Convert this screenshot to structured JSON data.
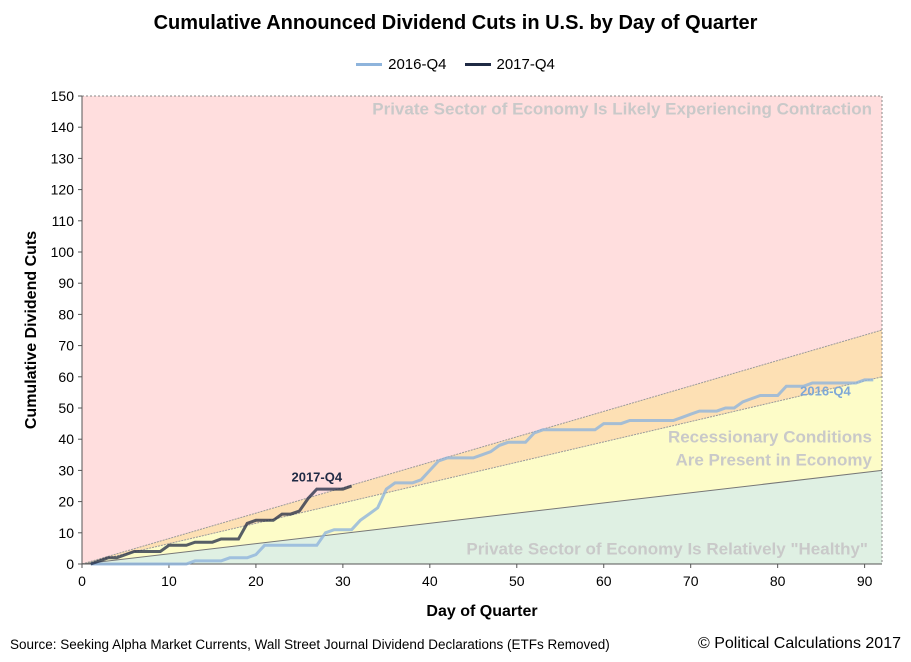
{
  "title": "Cumulative Announced Dividend Cuts in U.S. by Day of Quarter",
  "source": "Source: Seeking Alpha Market Currents, Wall Street Journal Dividend Declarations (ETFs Removed)",
  "copyright": "© Political Calculations 2017",
  "colors": {
    "series_2016": "#8eb4dc",
    "series_2017": "#1f2a44",
    "zone_contraction": "#ffdede",
    "zone_orange": "#fde0b4",
    "zone_recession": "#fdfcc8",
    "zone_healthy": "#dff0e3",
    "zone_text": "#c9c9c9",
    "label_2016": "#7fa8d6"
  },
  "chart_data": {
    "type": "line",
    "title": "Cumulative Announced Dividend Cuts in U.S. by Day of Quarter",
    "xlabel": "Day of Quarter",
    "ylabel": "Cumulative Dividend Cuts",
    "xlim": [
      0,
      92
    ],
    "ylim": [
      0,
      150
    ],
    "xticks": [
      0,
      10,
      20,
      30,
      40,
      50,
      60,
      70,
      80,
      90
    ],
    "yticks": [
      0,
      10,
      20,
      30,
      40,
      50,
      60,
      70,
      80,
      90,
      100,
      110,
      120,
      130,
      140,
      150
    ],
    "grid": false,
    "legend": "top-center",
    "series": [
      {
        "name": "2016-Q4",
        "x": [
          1,
          2,
          3,
          4,
          5,
          6,
          7,
          8,
          9,
          10,
          11,
          12,
          13,
          14,
          15,
          16,
          17,
          18,
          19,
          20,
          21,
          22,
          23,
          24,
          25,
          26,
          27,
          28,
          29,
          30,
          31,
          32,
          33,
          34,
          35,
          36,
          37,
          38,
          39,
          40,
          41,
          42,
          43,
          44,
          45,
          46,
          47,
          48,
          49,
          50,
          51,
          52,
          53,
          54,
          55,
          56,
          57,
          58,
          59,
          60,
          61,
          62,
          63,
          64,
          65,
          66,
          67,
          68,
          69,
          70,
          71,
          72,
          73,
          74,
          75,
          76,
          77,
          78,
          79,
          80,
          81,
          82,
          83,
          84,
          85,
          86,
          87,
          88,
          89,
          90,
          91
        ],
        "values": [
          0,
          0,
          0,
          0,
          0,
          0,
          0,
          0,
          0,
          0,
          0,
          0,
          1,
          1,
          1,
          1,
          2,
          2,
          2,
          3,
          6,
          6,
          6,
          6,
          6,
          6,
          6,
          10,
          11,
          11,
          11,
          14,
          16,
          18,
          24,
          26,
          26,
          26,
          27,
          30,
          33,
          34,
          34,
          34,
          34,
          35,
          36,
          38,
          39,
          39,
          39,
          42,
          43,
          43,
          43,
          43,
          43,
          43,
          43,
          45,
          45,
          45,
          46,
          46,
          46,
          46,
          46,
          46,
          47,
          48,
          49,
          49,
          49,
          50,
          50,
          52,
          53,
          54,
          54,
          54,
          57,
          57,
          57,
          58,
          58,
          58,
          58,
          58,
          58,
          59,
          59
        ]
      },
      {
        "name": "2017-Q4",
        "x": [
          1,
          2,
          3,
          4,
          5,
          6,
          7,
          8,
          9,
          10,
          11,
          12,
          13,
          14,
          15,
          16,
          17,
          18,
          19,
          20,
          21,
          22,
          23,
          24,
          25,
          26,
          27,
          28,
          29,
          30,
          31
        ],
        "values": [
          0,
          1,
          2,
          2,
          3,
          4,
          4,
          4,
          4,
          6,
          6,
          6,
          7,
          7,
          7,
          8,
          8,
          8,
          13,
          14,
          14,
          14,
          16,
          16,
          17,
          21,
          24,
          24,
          24,
          24,
          25
        ]
      }
    ],
    "zone_boundaries": {
      "upper_slope_per_day": 0.8152,
      "upper_end_value": 75,
      "lower_slope_per_day": 0.3261,
      "lower_end_value": 30
    },
    "annotations": {
      "contraction": "Private Sector of Economy Is Likely Experiencing Contraction",
      "recession_line1": "Recessionary Conditions",
      "recession_line2": "Are Present in Economy",
      "healthy": "Private Sector of Economy Is Relatively \"Healthy\"",
      "label_2016": "2016-Q4",
      "label_2017": "2017-Q4"
    }
  }
}
